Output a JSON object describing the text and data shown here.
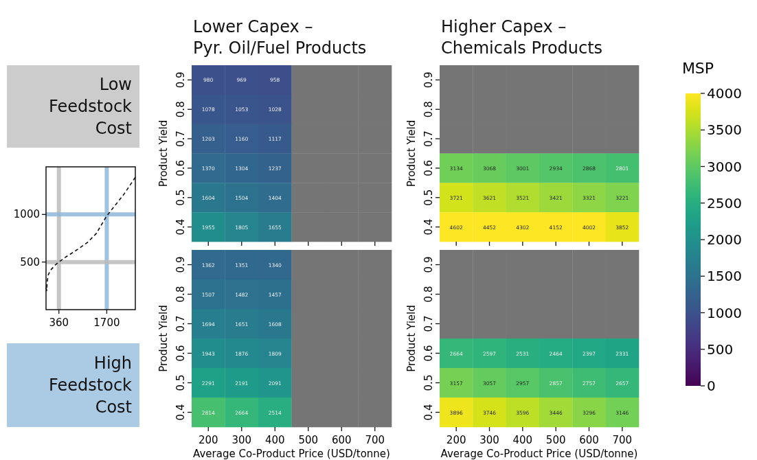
{
  "chart_data": [
    {
      "type": "line",
      "x": [
        5,
        19,
        32,
        64,
        128,
        256,
        365,
        577,
        833,
        1154,
        1410,
        1700,
        1923,
        2179,
        2372,
        2500
      ],
      "series": [
        {
          "type": "line",
          "color": "#111111",
          "line_style": "dashed",
          "values": [
            230,
            198,
            294,
            367,
            415,
            468,
            502,
            559,
            620,
            704,
            801,
            985,
            1090,
            1211,
            1319,
            1391
          ]
        }
      ],
      "xlim": [
        0,
        2500
      ],
      "ylim": [
        0,
        1500
      ],
      "xticks": [
        360,
        1700
      ],
      "yticks": [
        500,
        1000
      ],
      "marker": "none",
      "grid": false,
      "ref_lines": [
        {
          "axis": "x",
          "value": 360,
          "color": "#bbbbbb"
        },
        {
          "axis": "x",
          "value": 1700,
          "color": "#8fb8da"
        },
        {
          "axis": "y",
          "value": 1000,
          "color": "#8fb8da"
        },
        {
          "axis": "y",
          "value": 500,
          "color": "#bbbbbb"
        }
      ],
      "annotations": [
        "Low Feedstock Cost",
        "High Feedstock Cost"
      ]
    },
    {
      "type": "heatmap",
      "title": "Lower Capex –\nPyr. Oil/Fuel Products",
      "ylabel": "Product Yield",
      "tick_labels": "y",
      "data_labels": true,
      "categories": [
        "200",
        "300",
        "400",
        "500",
        "600",
        "700"
      ],
      "y_categories": [
        "0.9",
        "0.8",
        "0.7",
        "0.6",
        "0.5",
        "0.4"
      ],
      "cells": [
        [
          980,
          969,
          958,
          null,
          null,
          null
        ],
        [
          1078,
          1053,
          1028,
          null,
          null,
          null
        ],
        [
          1203,
          1160,
          1117,
          null,
          null,
          null
        ],
        [
          1370,
          1304,
          1237,
          null,
          null,
          null
        ],
        [
          1604,
          1504,
          1404,
          null,
          null,
          null
        ],
        [
          1955,
          1805,
          1655,
          null,
          null,
          null
        ]
      ]
    },
    {
      "type": "heatmap",
      "title": "Higher Capex –\nChemicals Products",
      "ylabel": "Product Yield",
      "tick_labels": "y",
      "data_labels": true,
      "categories": [
        "200",
        "300",
        "400",
        "500",
        "600",
        "700"
      ],
      "y_categories": [
        "0.9",
        "0.8",
        "0.7",
        "0.6",
        "0.5",
        "0.4"
      ],
      "cells": [
        [
          null,
          null,
          null,
          null,
          null,
          null
        ],
        [
          null,
          null,
          null,
          null,
          null,
          null
        ],
        [
          null,
          null,
          null,
          null,
          null,
          null
        ],
        [
          3134,
          3068,
          3001,
          2934,
          2868,
          2801
        ],
        [
          3721,
          3621,
          3521,
          3421,
          3321,
          3221
        ],
        [
          4602,
          4452,
          4302,
          4152,
          4002,
          3852
        ]
      ]
    },
    {
      "type": "heatmap",
      "xlabel": "Average Co-Product Price (USD/tonne)",
      "ylabel": "Product Yield",
      "data_labels": true,
      "categories": [
        "200",
        "300",
        "400",
        "500",
        "600",
        "700"
      ],
      "y_categories": [
        "0.9",
        "0.8",
        "0.7",
        "0.6",
        "0.5",
        "0.4"
      ],
      "cells": [
        [
          1362,
          1351,
          1340,
          null,
          null,
          null
        ],
        [
          1507,
          1482,
          1457,
          null,
          null,
          null
        ],
        [
          1694,
          1651,
          1608,
          null,
          null,
          null
        ],
        [
          1943,
          1876,
          1809,
          null,
          null,
          null
        ],
        [
          2291,
          2191,
          2091,
          null,
          null,
          null
        ],
        [
          2814,
          2664,
          2514,
          null,
          null,
          null
        ]
      ]
    },
    {
      "type": "heatmap",
      "xlabel": "Average Co-Product Price (USD/tonne)",
      "ylabel": "Product Yield",
      "data_labels": true,
      "categories": [
        "200",
        "300",
        "400",
        "500",
        "600",
        "700"
      ],
      "y_categories": [
        "0.9",
        "0.8",
        "0.7",
        "0.6",
        "0.5",
        "0.4"
      ],
      "clim": [
        0,
        4000
      ],
      "clabel": "MSP",
      "cticks": [
        0,
        500,
        1000,
        1500,
        2000,
        2500,
        3000,
        3500,
        4000
      ],
      "cells": [
        [
          null,
          null,
          null,
          null,
          null,
          null
        ],
        [
          null,
          null,
          null,
          null,
          null,
          null
        ],
        [
          null,
          null,
          null,
          null,
          null,
          null
        ],
        [
          2664,
          2597,
          2531,
          2464,
          2397,
          2331
        ],
        [
          3157,
          3057,
          2957,
          2857,
          2757,
          2657
        ],
        [
          3896,
          3746,
          3596,
          3446,
          3296,
          3146
        ]
      ]
    }
  ]
}
